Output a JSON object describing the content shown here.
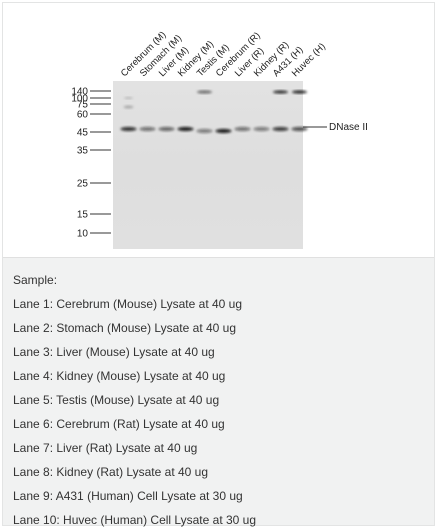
{
  "blot": {
    "lanes": [
      "Cerebrum (M)",
      "Stomach (M)",
      "Liver (M)",
      "Kidney (M)",
      "Testis (M)",
      "Cerebrum (R)",
      "Liver (R)",
      "Kidney (R)",
      "A431 (H)",
      "Huvec (H)"
    ],
    "markers": [
      "140",
      "100",
      "75",
      "60",
      "45",
      "35",
      "25",
      "15",
      "10"
    ],
    "protein_label": "DNase II",
    "band_intensity_45kda": [
      0.85,
      0.55,
      0.6,
      0.95,
      0.5,
      0.95,
      0.55,
      0.5,
      0.8,
      0.7
    ],
    "band_intensity_high": [
      0.0,
      0.0,
      0.0,
      0.0,
      0.6,
      0.0,
      0.0,
      0.0,
      0.9,
      0.95
    ]
  },
  "caption": {
    "heading": "Sample:",
    "lines": [
      "Lane 1: Cerebrum (Mouse) Lysate at 40 ug",
      "Lane 2: Stomach (Mouse) Lysate at 40 ug",
      "Lane 3: Liver (Mouse) Lysate at 40 ug",
      "Lane 4: Kidney (Mouse) Lysate at 40 ug",
      "Lane 5: Testis (Mouse) Lysate at 40 ug",
      "Lane 6: Cerebrum (Rat) Lysate at 40 ug",
      "Lane 7: Liver (Rat) Lysate at 40 ug",
      "Lane 8: Kidney (Rat) Lysate at 40 ug",
      "Lane 9: A431 (Human) Cell Lysate at 30 ug",
      "Lane 10: Huvec (Human) Cell Lysate at 30 ug"
    ]
  }
}
